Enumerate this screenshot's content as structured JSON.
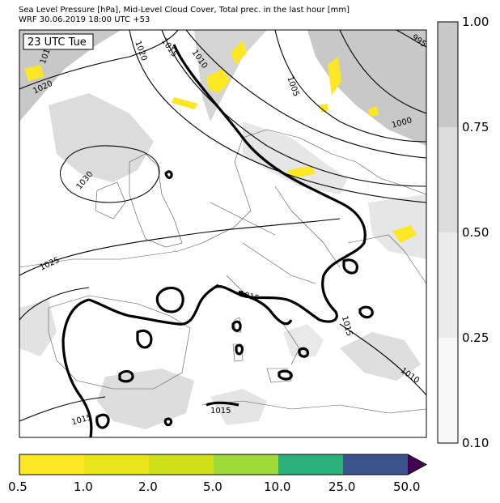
{
  "header": {
    "line1": "Sea Level Pressure [hPa], Mid-Level Cloud Cover, Total prec. in the last hour [mm]",
    "line2": "WRF 30.06.2019 18:00 UTC +53"
  },
  "map": {
    "time_label": "23 UTC Tue",
    "isobar_labels": [
      "1015",
      "1010",
      "1005",
      "1000",
      "995",
      "1020",
      "1030",
      "1025",
      "1015",
      "1015",
      "1015",
      "1015",
      "1010",
      "1015",
      "1020"
    ]
  },
  "cloud_colorbar": {
    "ticks": [
      "1.00",
      "0.75",
      "0.50",
      "0.25",
      "0.10"
    ],
    "colors": [
      "#c8c8c8",
      "#dcdcdc",
      "#ebebeb",
      "#f8f8f8"
    ]
  },
  "precip_colorbar": {
    "ticks": [
      "0.5",
      "1.0",
      "2.0",
      "5.0",
      "10.0",
      "25.0",
      "50.0"
    ],
    "colors": [
      "#fde725",
      "#e8e419",
      "#d0e11c",
      "#a0da39",
      "#2db27d",
      "#3b528b",
      "#440154"
    ]
  }
}
